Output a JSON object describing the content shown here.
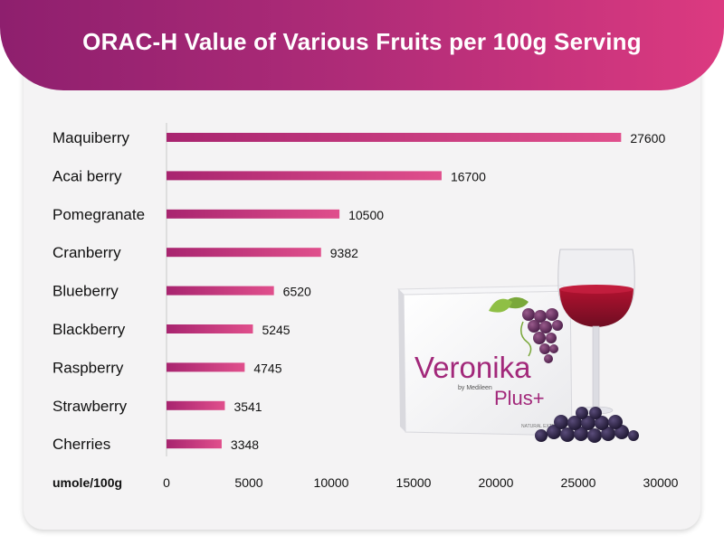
{
  "title": "ORAC-H Value of Various Fruits per 100g Serving",
  "product": {
    "brand_line1": "Veronika",
    "brand_line2": "Plus+",
    "brand_sub": "by Medileen",
    "small_text": "NATURAL EXTRACT"
  },
  "colors": {
    "banner_start": "#8e1f6e",
    "banner_end": "#dc3a80",
    "bar_start": "#a8246f",
    "bar_end": "#e04f8c"
  },
  "chart_data": {
    "type": "bar",
    "orientation": "horizontal",
    "title": "ORAC-H Value of Various Fruits per 100g Serving",
    "xlabel": "umole/100g",
    "ylabel": "",
    "categories": [
      "Maquiberry",
      "Acai berry",
      "Pomegranate",
      "Cranberry",
      "Blueberry",
      "Blackberry",
      "Raspberry",
      "Strawberry",
      "Cherries"
    ],
    "values": [
      27600,
      16700,
      10500,
      9382,
      6520,
      5245,
      4745,
      3541,
      3348
    ],
    "xlim": [
      0,
      30000
    ],
    "xticks": [
      0,
      5000,
      10000,
      15000,
      20000,
      25000,
      30000
    ],
    "grid": false,
    "legend": "none"
  }
}
